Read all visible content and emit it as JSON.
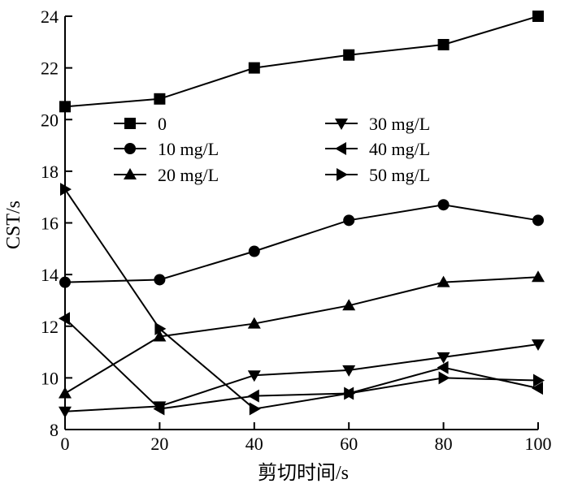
{
  "chart_data": {
    "type": "line",
    "title": "",
    "xlabel": "剪切时间/s",
    "ylabel": "CST/s",
    "xlim": [
      0,
      100
    ],
    "ylim": [
      8,
      24
    ],
    "xticks": [
      0,
      20,
      40,
      60,
      80,
      100
    ],
    "yticks": [
      8,
      10,
      12,
      14,
      16,
      18,
      20,
      22,
      24
    ],
    "x": [
      0,
      20,
      40,
      60,
      80,
      100
    ],
    "grid": false,
    "legend_position": "upper-middle",
    "series": [
      {
        "name": "0",
        "marker": "square",
        "values": [
          20.5,
          20.8,
          22.0,
          22.5,
          22.9,
          24.0
        ]
      },
      {
        "name": "10 mg/L",
        "marker": "circle",
        "values": [
          13.7,
          13.8,
          14.9,
          16.1,
          16.7,
          16.1
        ]
      },
      {
        "name": "20 mg/L",
        "marker": "triangle-up",
        "values": [
          9.4,
          11.6,
          12.1,
          12.8,
          13.7,
          13.9
        ]
      },
      {
        "name": "30 mg/L",
        "marker": "triangle-down",
        "values": [
          8.7,
          8.9,
          10.1,
          10.3,
          10.8,
          11.3
        ]
      },
      {
        "name": "40 mg/L",
        "marker": "triangle-left",
        "values": [
          12.3,
          8.8,
          9.3,
          9.4,
          10.4,
          9.6
        ]
      },
      {
        "name": "50 mg/L",
        "marker": "triangle-right",
        "values": [
          17.3,
          11.9,
          8.8,
          9.4,
          10.0,
          9.9
        ]
      }
    ]
  }
}
